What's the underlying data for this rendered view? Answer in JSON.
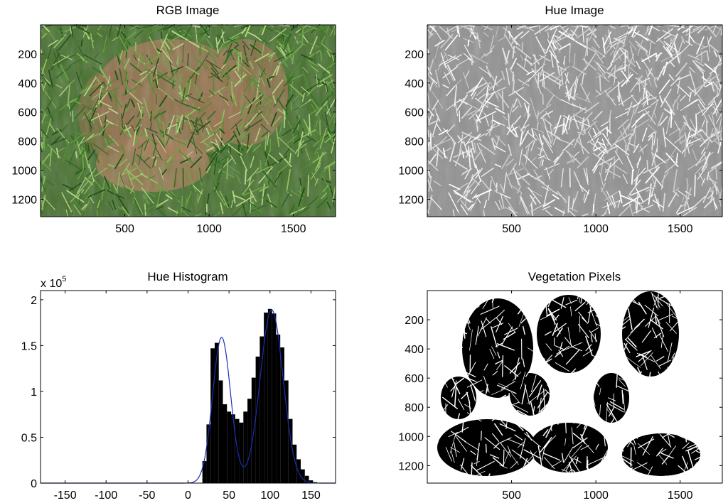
{
  "chart_data": [
    {
      "type": "image",
      "title": "RGB Image",
      "xlim": [
        0,
        1750
      ],
      "ylim": [
        1320,
        0
      ],
      "xticks": [
        500,
        1000,
        1500
      ],
      "yticks": [
        200,
        400,
        600,
        800,
        1000,
        1200
      ],
      "content": "rgb-photo-wheat-field",
      "colors": {
        "soil": "#a6774f",
        "vegetation": "#3c7a2a",
        "dark": "#1f3d1a"
      }
    },
    {
      "type": "image",
      "title": "Hue Image",
      "xlim": [
        0,
        1750
      ],
      "ylim": [
        1320,
        0
      ],
      "xticks": [
        500,
        1000,
        1500
      ],
      "yticks": [
        200,
        400,
        600,
        800,
        1000,
        1200
      ],
      "content": "hue-grayscale",
      "colors": {
        "soil": "#8f8f8f",
        "vegetation": "#e2e2e2"
      }
    },
    {
      "type": "bar",
      "title": "Hue Histogram",
      "y_multiplier_label": "x 10",
      "y_multiplier_exponent": "5",
      "xlim": [
        -180,
        180
      ],
      "ylim": [
        0,
        2.1
      ],
      "xticks": [
        -150,
        -100,
        -50,
        0,
        50,
        100,
        150
      ],
      "yticks": [
        0,
        0.5,
        1,
        1.5,
        2
      ],
      "bin_width": 5,
      "bins": [
        [
          20,
          0.24
        ],
        [
          25,
          0.64
        ],
        [
          30,
          1.47
        ],
        [
          35,
          1.53
        ],
        [
          40,
          1.12
        ],
        [
          45,
          0.86
        ],
        [
          50,
          0.78
        ],
        [
          55,
          0.75
        ],
        [
          60,
          0.7
        ],
        [
          65,
          0.66
        ],
        [
          70,
          0.78
        ],
        [
          75,
          0.92
        ],
        [
          80,
          1.15
        ],
        [
          85,
          1.38
        ],
        [
          90,
          1.6
        ],
        [
          95,
          1.86
        ],
        [
          100,
          1.9
        ],
        [
          105,
          1.85
        ],
        [
          110,
          1.62
        ],
        [
          115,
          1.48
        ],
        [
          120,
          1.12
        ],
        [
          125,
          0.7
        ],
        [
          130,
          0.42
        ],
        [
          135,
          0.26
        ],
        [
          140,
          0.15
        ],
        [
          145,
          0.08
        ],
        [
          150,
          0.03
        ],
        [
          155,
          0.01
        ]
      ],
      "fit_curve": {
        "components": [
          {
            "mean": 41,
            "sd": 11,
            "amp": 1.59
          },
          {
            "mean": 102,
            "sd": 14,
            "amp": 1.89
          }
        ],
        "color": "#1b2fb5"
      }
    },
    {
      "type": "image",
      "title": "Vegetation Pixels",
      "xlim": [
        0,
        1750
      ],
      "ylim": [
        1320,
        0
      ],
      "xticks": [
        500,
        1000,
        1500
      ],
      "yticks": [
        200,
        400,
        600,
        800,
        1000,
        1200
      ],
      "content": "binary-mask",
      "colors": {
        "background": "#000000",
        "vegetation": "#ffffff"
      }
    }
  ]
}
